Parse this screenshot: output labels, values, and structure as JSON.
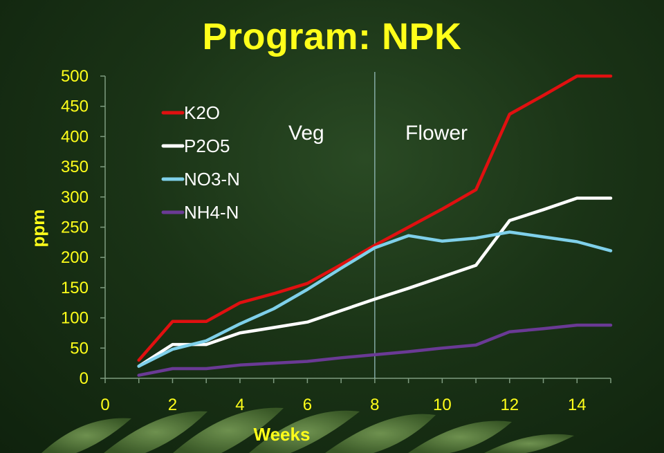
{
  "page": {
    "title": "Program: NPK"
  },
  "chart_data": {
    "type": "line",
    "title": "Program: NPK",
    "xlabel": "Weeks",
    "ylabel": "ppm",
    "xlim": [
      0,
      15
    ],
    "ylim": [
      0,
      500
    ],
    "x_ticks": [
      0,
      2,
      4,
      6,
      8,
      10,
      12,
      14
    ],
    "y_ticks": [
      0,
      50,
      100,
      150,
      200,
      250,
      300,
      350,
      400,
      450,
      500
    ],
    "grid": false,
    "legend_position": "top-left",
    "divider": {
      "x": 8,
      "left_label": "Veg",
      "right_label": "Flower"
    },
    "series": [
      {
        "name": "K2O",
        "color": "#e01010",
        "x": [
          1,
          2,
          3,
          4,
          5,
          6,
          7,
          8,
          9,
          10,
          11,
          12,
          13,
          14,
          15
        ],
        "y": [
          30,
          94,
          94,
          125,
          140,
          157,
          188,
          220,
          250,
          280,
          312,
          437,
          468,
          500,
          500
        ]
      },
      {
        "name": "P2O5",
        "color": "#ffffff",
        "x": [
          1,
          2,
          3,
          4,
          5,
          6,
          7,
          8,
          9,
          10,
          11,
          12,
          13,
          14,
          15
        ],
        "y": [
          20,
          56,
          56,
          75,
          84,
          93,
          112,
          131,
          149,
          168,
          187,
          261,
          279,
          298,
          298
        ]
      },
      {
        "name": "NO3-N",
        "color": "#7fd0ea",
        "x": [
          1,
          2,
          3,
          4,
          5,
          6,
          7,
          8,
          9,
          10,
          11,
          12,
          13,
          14,
          15
        ],
        "y": [
          20,
          48,
          62,
          90,
          115,
          147,
          182,
          216,
          236,
          227,
          232,
          242,
          234,
          226,
          211
        ]
      },
      {
        "name": "NH4-N",
        "color": "#6a3a95",
        "x": [
          1,
          2,
          3,
          4,
          5,
          6,
          7,
          8,
          9,
          10,
          11,
          12,
          13,
          14,
          15
        ],
        "y": [
          5,
          16,
          16,
          22,
          25,
          28,
          34,
          39,
          44,
          50,
          55,
          77,
          82,
          88,
          88
        ]
      }
    ]
  }
}
